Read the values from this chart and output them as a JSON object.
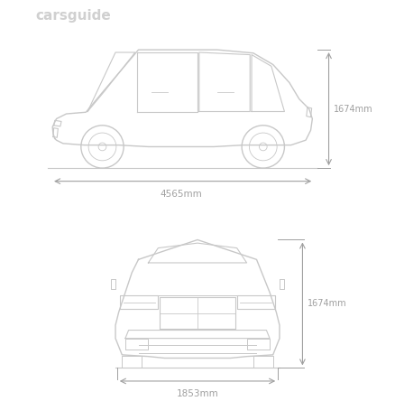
{
  "bg_color": "#ffffff",
  "line_color": "#c8c8c8",
  "text_color": "#a0a0a0",
  "watermark": "carsguide",
  "watermark_color": "#d0d0d0",
  "height_mm": "1674mm",
  "length_mm": "4565mm",
  "width_mm": "1853mm",
  "fig_width": 4.38,
  "fig_height": 4.44,
  "dpi": 100
}
